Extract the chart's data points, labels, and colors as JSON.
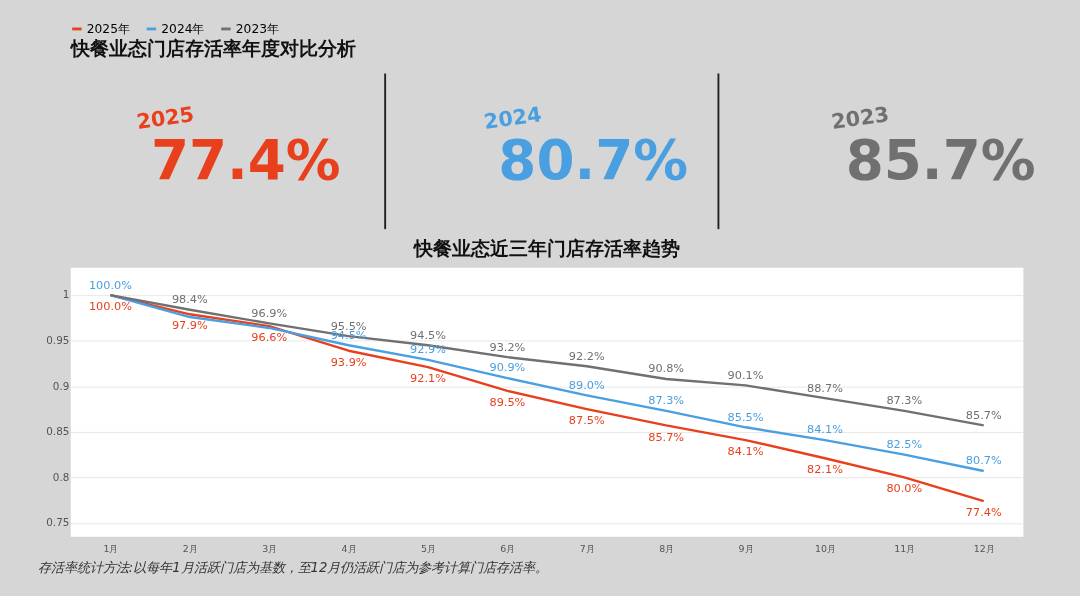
{
  "chart_data": [
    {
      "type": "other",
      "title": "快餐业态门店存活率年度对比分析",
      "annotations": [
        "2025",
        "77.4%",
        "2024",
        "80.7%",
        "2023",
        "85.7%"
      ],
      "colors": [
        "#e8401c",
        "#4a9fe0",
        "#707070"
      ]
    },
    {
      "type": "line",
      "title": "快餐业态近三年门店存活率趋势",
      "categories": [
        "1月",
        "2月",
        "3月",
        "4月",
        "5月",
        "6月",
        "7月",
        "8月",
        "9月",
        "10月",
        "11月",
        "12月"
      ],
      "series": [
        {
          "name": "2025年",
          "color": "#e8401c",
          "values": [
            1.0,
            0.979,
            0.966,
            0.939,
            0.921,
            0.895,
            0.875,
            0.857,
            0.841,
            0.821,
            0.8,
            0.774
          ],
          "value_labels": [
            "100.0%",
            "97.9%",
            "96.6%",
            "93.9%",
            "92.1%",
            "89.5%",
            "87.5%",
            "85.7%",
            "84.1%",
            "82.1%",
            "80.0%",
            "77.4%"
          ]
        },
        {
          "name": "2024年",
          "color": "#4a9fe0",
          "values": [
            1.0,
            0.976,
            0.964,
            0.945,
            0.929,
            0.909,
            0.89,
            0.873,
            0.855,
            0.841,
            0.825,
            0.807
          ],
          "value_labels": [
            "100.0%",
            null,
            null,
            "94.5%",
            "92.9%",
            "90.9%",
            "89.0%",
            "87.3%",
            "85.5%",
            "84.1%",
            "82.5%",
            "80.7%"
          ]
        },
        {
          "name": "2023年",
          "color": "#707070",
          "values": [
            1.0,
            0.984,
            0.969,
            0.955,
            0.945,
            0.932,
            0.922,
            0.908,
            0.901,
            0.887,
            0.873,
            0.857
          ],
          "value_labels": [
            null,
            "98.4%",
            "96.9%",
            "95.5%",
            "94.5%",
            "93.2%",
            "92.2%",
            "90.8%",
            "90.1%",
            "88.7%",
            "87.3%",
            "85.7%"
          ]
        }
      ],
      "ylim": [
        0.735,
        1.03
      ],
      "yticks": [
        0.75,
        0.8,
        0.85,
        0.9,
        0.95,
        1
      ],
      "grid": "y",
      "legend": "top left",
      "marker": "none",
      "line_style": "solid",
      "annotations": [
        "存活率统计方法:以每年1月活跃门店为基数，至12月仍活跃门店为参考计算门店存活率。"
      ]
    }
  ]
}
